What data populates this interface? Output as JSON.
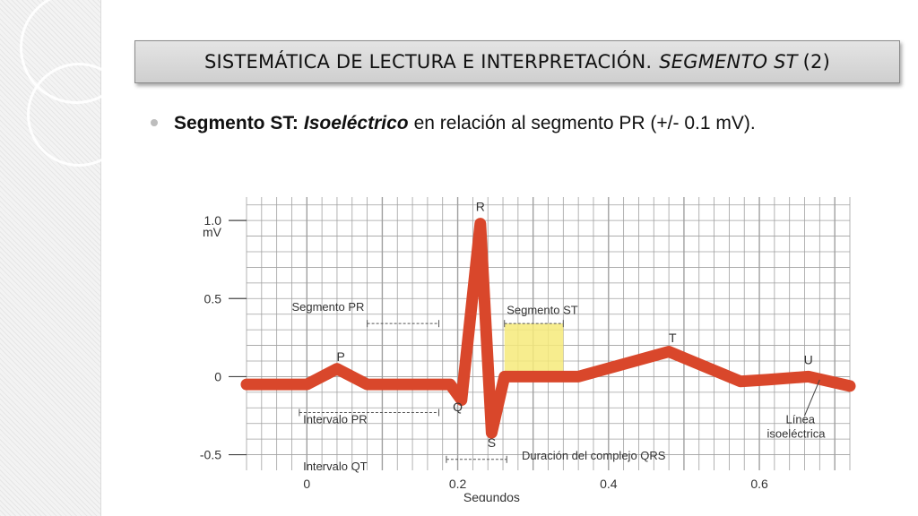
{
  "slide": {
    "title_main": "SISTEMÁTICA DE LECTURA E INTERPRETACIÓN.",
    "title_italic": "SEGMENTO ST",
    "title_num": "(2)",
    "bullet_bold": "Segmento ST:",
    "bullet_bold_italic": "Isoeléctrico",
    "bullet_rest": "en relación al segmento PR (+/- 0.1 mV)."
  },
  "colors": {
    "trace": "#d9472b",
    "highlight": "#f6ea7a",
    "grid": "#a0a0a0",
    "axis_text": "#333333"
  },
  "chart_data": {
    "type": "line",
    "title": "",
    "xlabel": "Segundos",
    "ylabel": "mV",
    "xlim": [
      -0.08,
      0.72
    ],
    "ylim": [
      -0.6,
      1.15
    ],
    "x_ticks": [
      {
        "value": 0,
        "label": "0"
      },
      {
        "value": 0.2,
        "label": "0.2"
      },
      {
        "value": 0.4,
        "label": "0.4"
      },
      {
        "value": 0.6,
        "label": "0.6"
      }
    ],
    "y_ticks": [
      {
        "value": 1.0,
        "label": "1.0"
      },
      {
        "value": 0.5,
        "label": "0.5"
      },
      {
        "value": 0,
        "label": "0"
      },
      {
        "value": -0.5,
        "label": "-0.5"
      }
    ],
    "grid": true,
    "series": [
      {
        "points": [
          {
            "x": -0.08,
            "y": -0.05
          },
          {
            "x": 0.0,
            "y": -0.05
          },
          {
            "x": 0.04,
            "y": 0.05
          },
          {
            "x": 0.08,
            "y": -0.05
          },
          {
            "x": 0.19,
            "y": -0.05
          },
          {
            "x": 0.205,
            "y": -0.15
          },
          {
            "x": 0.23,
            "y": 0.98
          },
          {
            "x": 0.245,
            "y": -0.36
          },
          {
            "x": 0.262,
            "y": 0.0
          },
          {
            "x": 0.36,
            "y": 0.0
          },
          {
            "x": 0.48,
            "y": 0.16
          },
          {
            "x": 0.575,
            "y": -0.03
          },
          {
            "x": 0.61,
            "y": -0.02
          },
          {
            "x": 0.665,
            "y": 0.0
          },
          {
            "x": 0.72,
            "y": -0.06
          }
        ]
      }
    ],
    "wave_labels": [
      {
        "text": "P",
        "x": 0.045,
        "y": 0.1
      },
      {
        "text": "R",
        "x": 0.23,
        "y": 1.06
      },
      {
        "text": "Q",
        "x": 0.2,
        "y": -0.22
      },
      {
        "text": "S",
        "x": 0.245,
        "y": -0.45
      },
      {
        "text": "T",
        "x": 0.485,
        "y": 0.22
      },
      {
        "text": "U",
        "x": 0.665,
        "y": 0.08
      }
    ],
    "segment_st_highlight": {
      "x0": 0.262,
      "x1": 0.34,
      "y0": 0.0,
      "y1": 0.34
    },
    "annotations": [
      {
        "text": "Segmento PR",
        "x0": 0.08,
        "x1": 0.175,
        "y": 0.34,
        "label_x": -0.02,
        "label_y": 0.42
      },
      {
        "text": "Segmento ST",
        "x0": 0.262,
        "x1": 0.34,
        "y": 0.34,
        "label_x": 0.265,
        "label_y": 0.4
      },
      {
        "text": "Intervalo PR",
        "x0": -0.01,
        "x1": 0.175,
        "y": -0.23,
        "label_x": -0.005,
        "label_y": -0.3
      },
      {
        "text": "Intervalo QT",
        "x0": 0.185,
        "x1": 0.185,
        "y": -0.58,
        "label_x": -0.005,
        "label_y": -0.6
      },
      {
        "text": "Duración del complejo QRS",
        "x0": 0.185,
        "x1": 0.265,
        "y": -0.53,
        "label_x": 0.285,
        "label_y": -0.53
      }
    ],
    "isoelectric_label": {
      "line1": "Línea",
      "line2": "isoeléctrica",
      "x": 0.63,
      "y": -0.3,
      "pointer_x": 0.68,
      "pointer_y": -0.02
    }
  }
}
